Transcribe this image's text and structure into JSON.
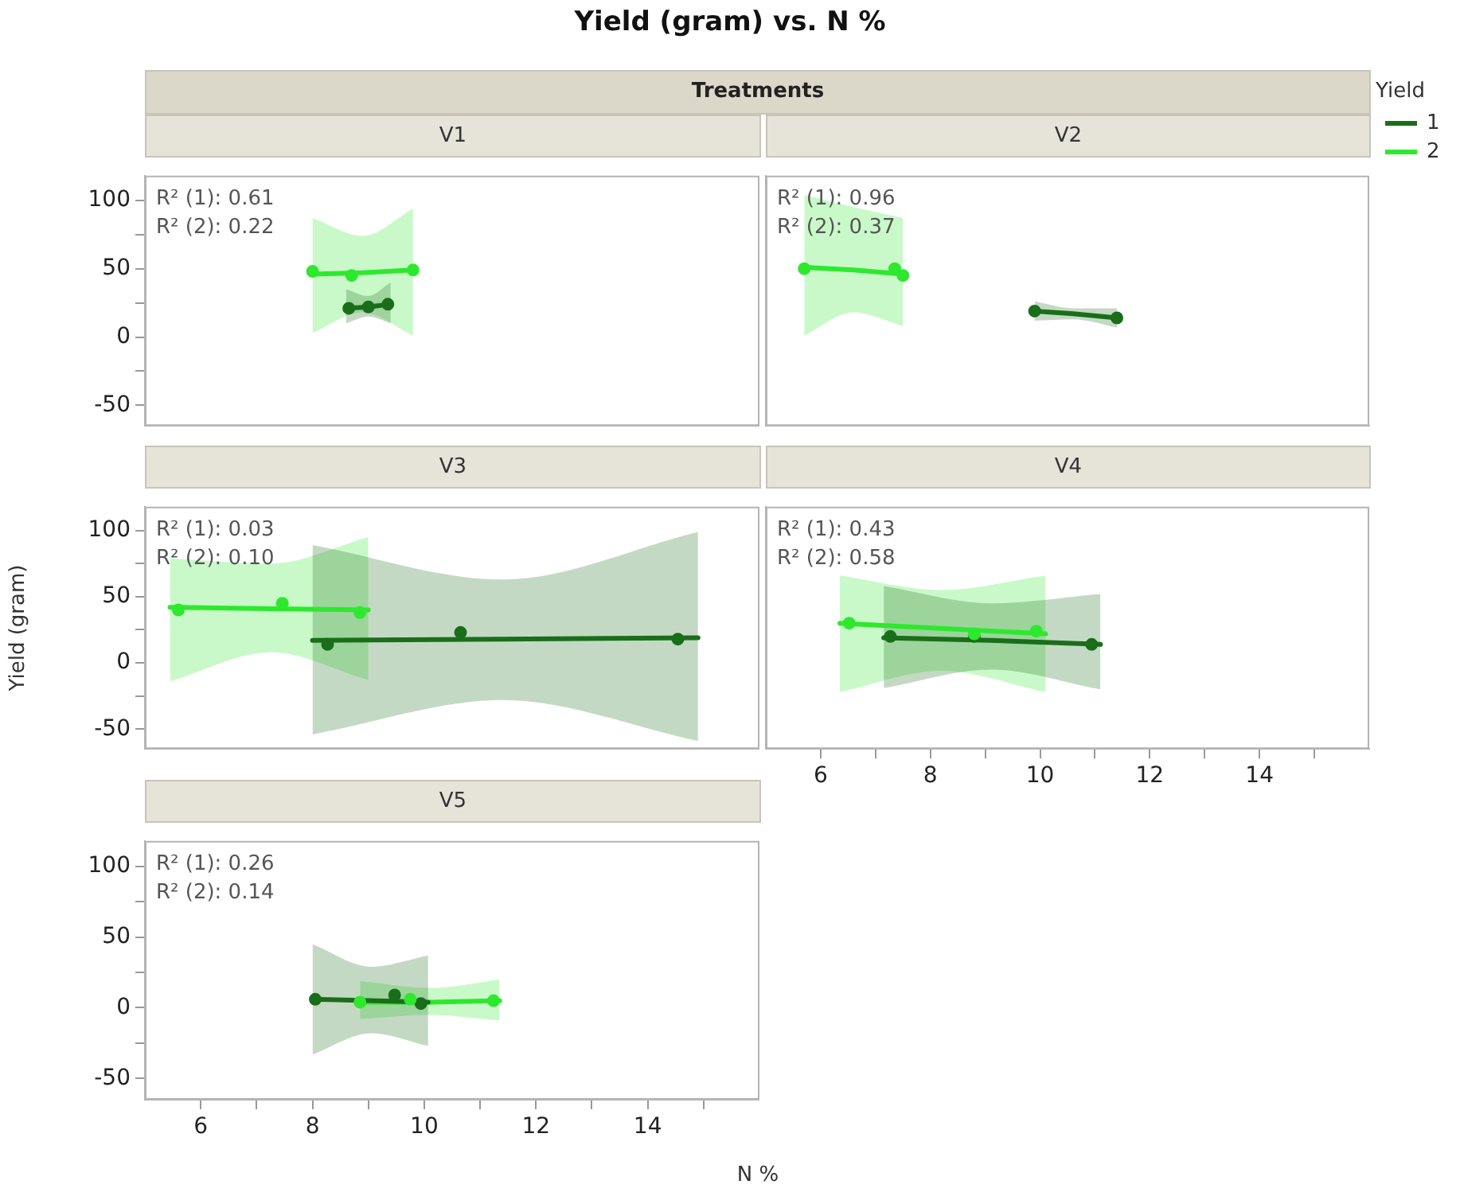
{
  "chart_data": [
    {
      "type": "scatter",
      "title": "V1",
      "annotations": [
        "Yield (gram) vs. N %",
        "Treatments",
        "R² (1): 0.61",
        "R² (2): 0.22"
      ],
      "xlim": [
        5,
        16
      ],
      "ylim": [
        -65,
        118
      ],
      "yticks": [
        -50,
        {
          "value": -25,
          "label": null
        },
        0,
        {
          "value": 25,
          "label": null
        },
        50,
        {
          "value": 75,
          "label": null
        },
        100
      ],
      "tick_labels": "y",
      "series": [
        {
          "type": "scatter",
          "marker": "circle",
          "color": "#1a6e1a",
          "x": [
            8.65,
            9.0,
            9.35
          ],
          "values": [
            21,
            22,
            24
          ]
        },
        {
          "type": "scatter",
          "marker": "circle",
          "color": "#2ee82e",
          "x": [
            8.0,
            8.7,
            9.8
          ],
          "values": [
            48,
            45,
            49
          ]
        },
        {
          "type": "line",
          "color": "#1a6e1a",
          "x": [
            8.6,
            9.0,
            9.4
          ],
          "values": [
            21,
            22,
            24
          ],
          "lower": [
            10,
            15,
            10
          ],
          "upper": [
            35,
            30,
            40
          ]
        },
        {
          "type": "line",
          "color": "#2ee82e",
          "x": [
            8.0,
            8.9,
            9.8
          ],
          "values": [
            46,
            47,
            49
          ],
          "lower": [
            3,
            18,
            1
          ],
          "upper": [
            87,
            74,
            94
          ]
        }
      ]
    },
    {
      "type": "scatter",
      "title": "V2",
      "annotations": [
        "R² (1): 0.96",
        "R² (2): 0.37"
      ],
      "xlim": [
        5,
        16
      ],
      "ylim": [
        -65,
        118
      ],
      "tick_labels": false,
      "legend": "right",
      "legend_title": "Yield",
      "series": [
        {
          "type": "scatter",
          "marker": "circle",
          "color": "#1a6e1a",
          "x": [
            9.9,
            11.4
          ],
          "values": [
            19,
            14
          ]
        },
        {
          "type": "scatter",
          "marker": "circle",
          "color": "#2ee82e",
          "x": [
            5.7,
            7.35,
            7.5
          ],
          "values": [
            50,
            50,
            45
          ]
        },
        {
          "type": "line",
          "name": "1",
          "color": "#1a6e1a",
          "x": [
            9.9,
            10.6,
            11.4
          ],
          "values": [
            19,
            17,
            14
          ],
          "lower": [
            12,
            13,
            7
          ],
          "upper": [
            26,
            21,
            21
          ]
        },
        {
          "type": "line",
          "name": "2",
          "color": "#2ee82e",
          "x": [
            5.7,
            6.6,
            7.5
          ],
          "values": [
            51,
            49,
            46
          ],
          "lower": [
            1,
            18,
            8
          ],
          "upper": [
            104,
            95,
            87
          ]
        }
      ]
    },
    {
      "type": "scatter",
      "title": "V3",
      "ylabel": "Yield (gram)",
      "annotations": [
        "R² (1): 0.03",
        "R² (2): 0.10"
      ],
      "xlim": [
        5,
        16
      ],
      "ylim": [
        -65,
        118
      ],
      "yticks": [
        -50,
        {
          "value": -25,
          "label": null
        },
        0,
        {
          "value": 25,
          "label": null
        },
        50,
        {
          "value": 75,
          "label": null
        },
        100
      ],
      "tick_labels": "y",
      "series": [
        {
          "type": "scatter",
          "marker": "circle",
          "color": "#1a6e1a",
          "x": [
            8.27,
            10.65,
            14.54
          ],
          "values": [
            14,
            23,
            18
          ]
        },
        {
          "type": "scatter",
          "marker": "circle",
          "color": "#2ee82e",
          "x": [
            5.6,
            7.46,
            8.85
          ],
          "values": [
            40,
            45,
            38
          ]
        },
        {
          "type": "line",
          "color": "#1a6e1a",
          "x": [
            8.0,
            11.4,
            14.9
          ],
          "values": [
            17,
            18,
            19
          ],
          "lower": [
            -54,
            -28,
            -59
          ],
          "upper": [
            89,
            63,
            99
          ]
        },
        {
          "type": "line",
          "color": "#2ee82e",
          "x": [
            5.45,
            7.25,
            9.0
          ],
          "values": [
            42,
            41,
            40
          ],
          "lower": [
            -14,
            8,
            -13
          ],
          "upper": [
            79,
            75,
            95
          ]
        }
      ]
    },
    {
      "type": "scatter",
      "title": "V4",
      "annotations": [
        "R² (1): 0.43",
        "R² (2): 0.58"
      ],
      "xlim": [
        5,
        16
      ],
      "xticks": [
        6,
        {
          "value": 7,
          "label": null
        },
        8,
        {
          "value": 9,
          "label": null
        },
        10,
        {
          "value": 11,
          "label": null
        },
        12,
        {
          "value": 13,
          "label": null
        },
        14,
        {
          "value": 15,
          "label": null
        }
      ],
      "ylim": [
        -65,
        118
      ],
      "tick_labels": "x",
      "series": [
        {
          "type": "scatter",
          "marker": "circle",
          "color": "#1a6e1a",
          "x": [
            7.27,
            8.8,
            10.94
          ],
          "values": [
            20,
            20,
            14
          ]
        },
        {
          "type": "scatter",
          "marker": "circle",
          "color": "#2ee82e",
          "x": [
            6.52,
            8.8,
            9.93
          ],
          "values": [
            30,
            22,
            24
          ]
        },
        {
          "type": "line",
          "color": "#1a6e1a",
          "x": [
            7.15,
            9.1,
            11.1
          ],
          "values": [
            19,
            17,
            14
          ],
          "lower": [
            -19,
            -5,
            -20
          ],
          "upper": [
            58,
            45,
            52
          ]
        },
        {
          "type": "line",
          "color": "#2ee82e",
          "x": [
            6.35,
            8.2,
            10.1
          ],
          "values": [
            30,
            26,
            22
          ],
          "lower": [
            -22,
            -6,
            -22
          ],
          "upper": [
            66,
            55,
            66
          ]
        }
      ]
    },
    {
      "type": "scatter",
      "title": "V5",
      "xlabel": "N %",
      "annotations": [
        "R² (1): 0.26",
        "R² (2): 0.14"
      ],
      "xlim": [
        5,
        16
      ],
      "xticks": [
        6,
        {
          "value": 7,
          "label": null
        },
        8,
        {
          "value": 9,
          "label": null
        },
        10,
        {
          "value": 11,
          "label": null
        },
        12,
        {
          "value": 13,
          "label": null
        },
        14,
        {
          "value": 15,
          "label": null
        }
      ],
      "ylim": [
        -65,
        118
      ],
      "yticks": [
        -50,
        {
          "value": -25,
          "label": null
        },
        0,
        {
          "value": 25,
          "label": null
        },
        50,
        {
          "value": 75,
          "label": null
        },
        100
      ],
      "series": [
        {
          "type": "scatter",
          "marker": "circle",
          "color": "#1a6e1a",
          "x": [
            8.05,
            9.47,
            9.94
          ],
          "values": [
            6,
            9,
            3
          ]
        },
        {
          "type": "scatter",
          "marker": "circle",
          "color": "#2ee82e",
          "x": [
            8.85,
            9.75,
            11.24
          ],
          "values": [
            4,
            6,
            5
          ]
        },
        {
          "type": "line",
          "color": "#1a6e1a",
          "x": [
            8.0,
            9.05,
            10.07
          ],
          "values": [
            6,
            5,
            4
          ],
          "lower": [
            -33,
            -18,
            -27
          ],
          "upper": [
            45,
            29,
            37
          ]
        },
        {
          "type": "line",
          "color": "#2ee82e",
          "x": [
            8.85,
            10.1,
            11.35
          ],
          "values": [
            4,
            4,
            5
          ],
          "lower": [
            -8,
            -5,
            -9
          ],
          "upper": [
            19,
            14,
            20
          ]
        }
      ]
    }
  ]
}
